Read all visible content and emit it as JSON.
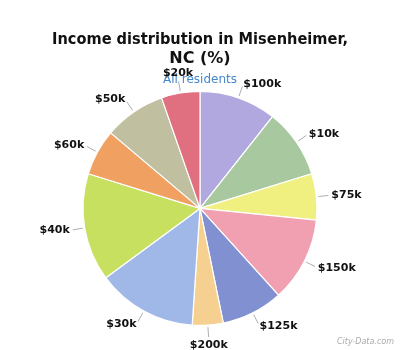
{
  "chart_data": {
    "type": "pie",
    "title": "Income distribution in Misenheimer,\nNC (%)",
    "subtitle": "All residents",
    "annotations": [
      "City-Data.com"
    ],
    "categories": [
      "$100k",
      "$10k",
      "$75k",
      "$150k",
      "$125k",
      "$200k",
      "$30k",
      "$40k",
      "$60k",
      "$50k",
      "$20k"
    ],
    "values": [
      10,
      9,
      6,
      11,
      8,
      4,
      13,
      14,
      6,
      8,
      5
    ],
    "colors": [
      "#b0a8de",
      "#a8c8a0",
      "#f0f080",
      "#f0a0b0",
      "#8090d0",
      "#f5d090",
      "#a0b8e8",
      "#c8e060",
      "#f0a060",
      "#c0bfa0",
      "#e07080"
    ]
  }
}
